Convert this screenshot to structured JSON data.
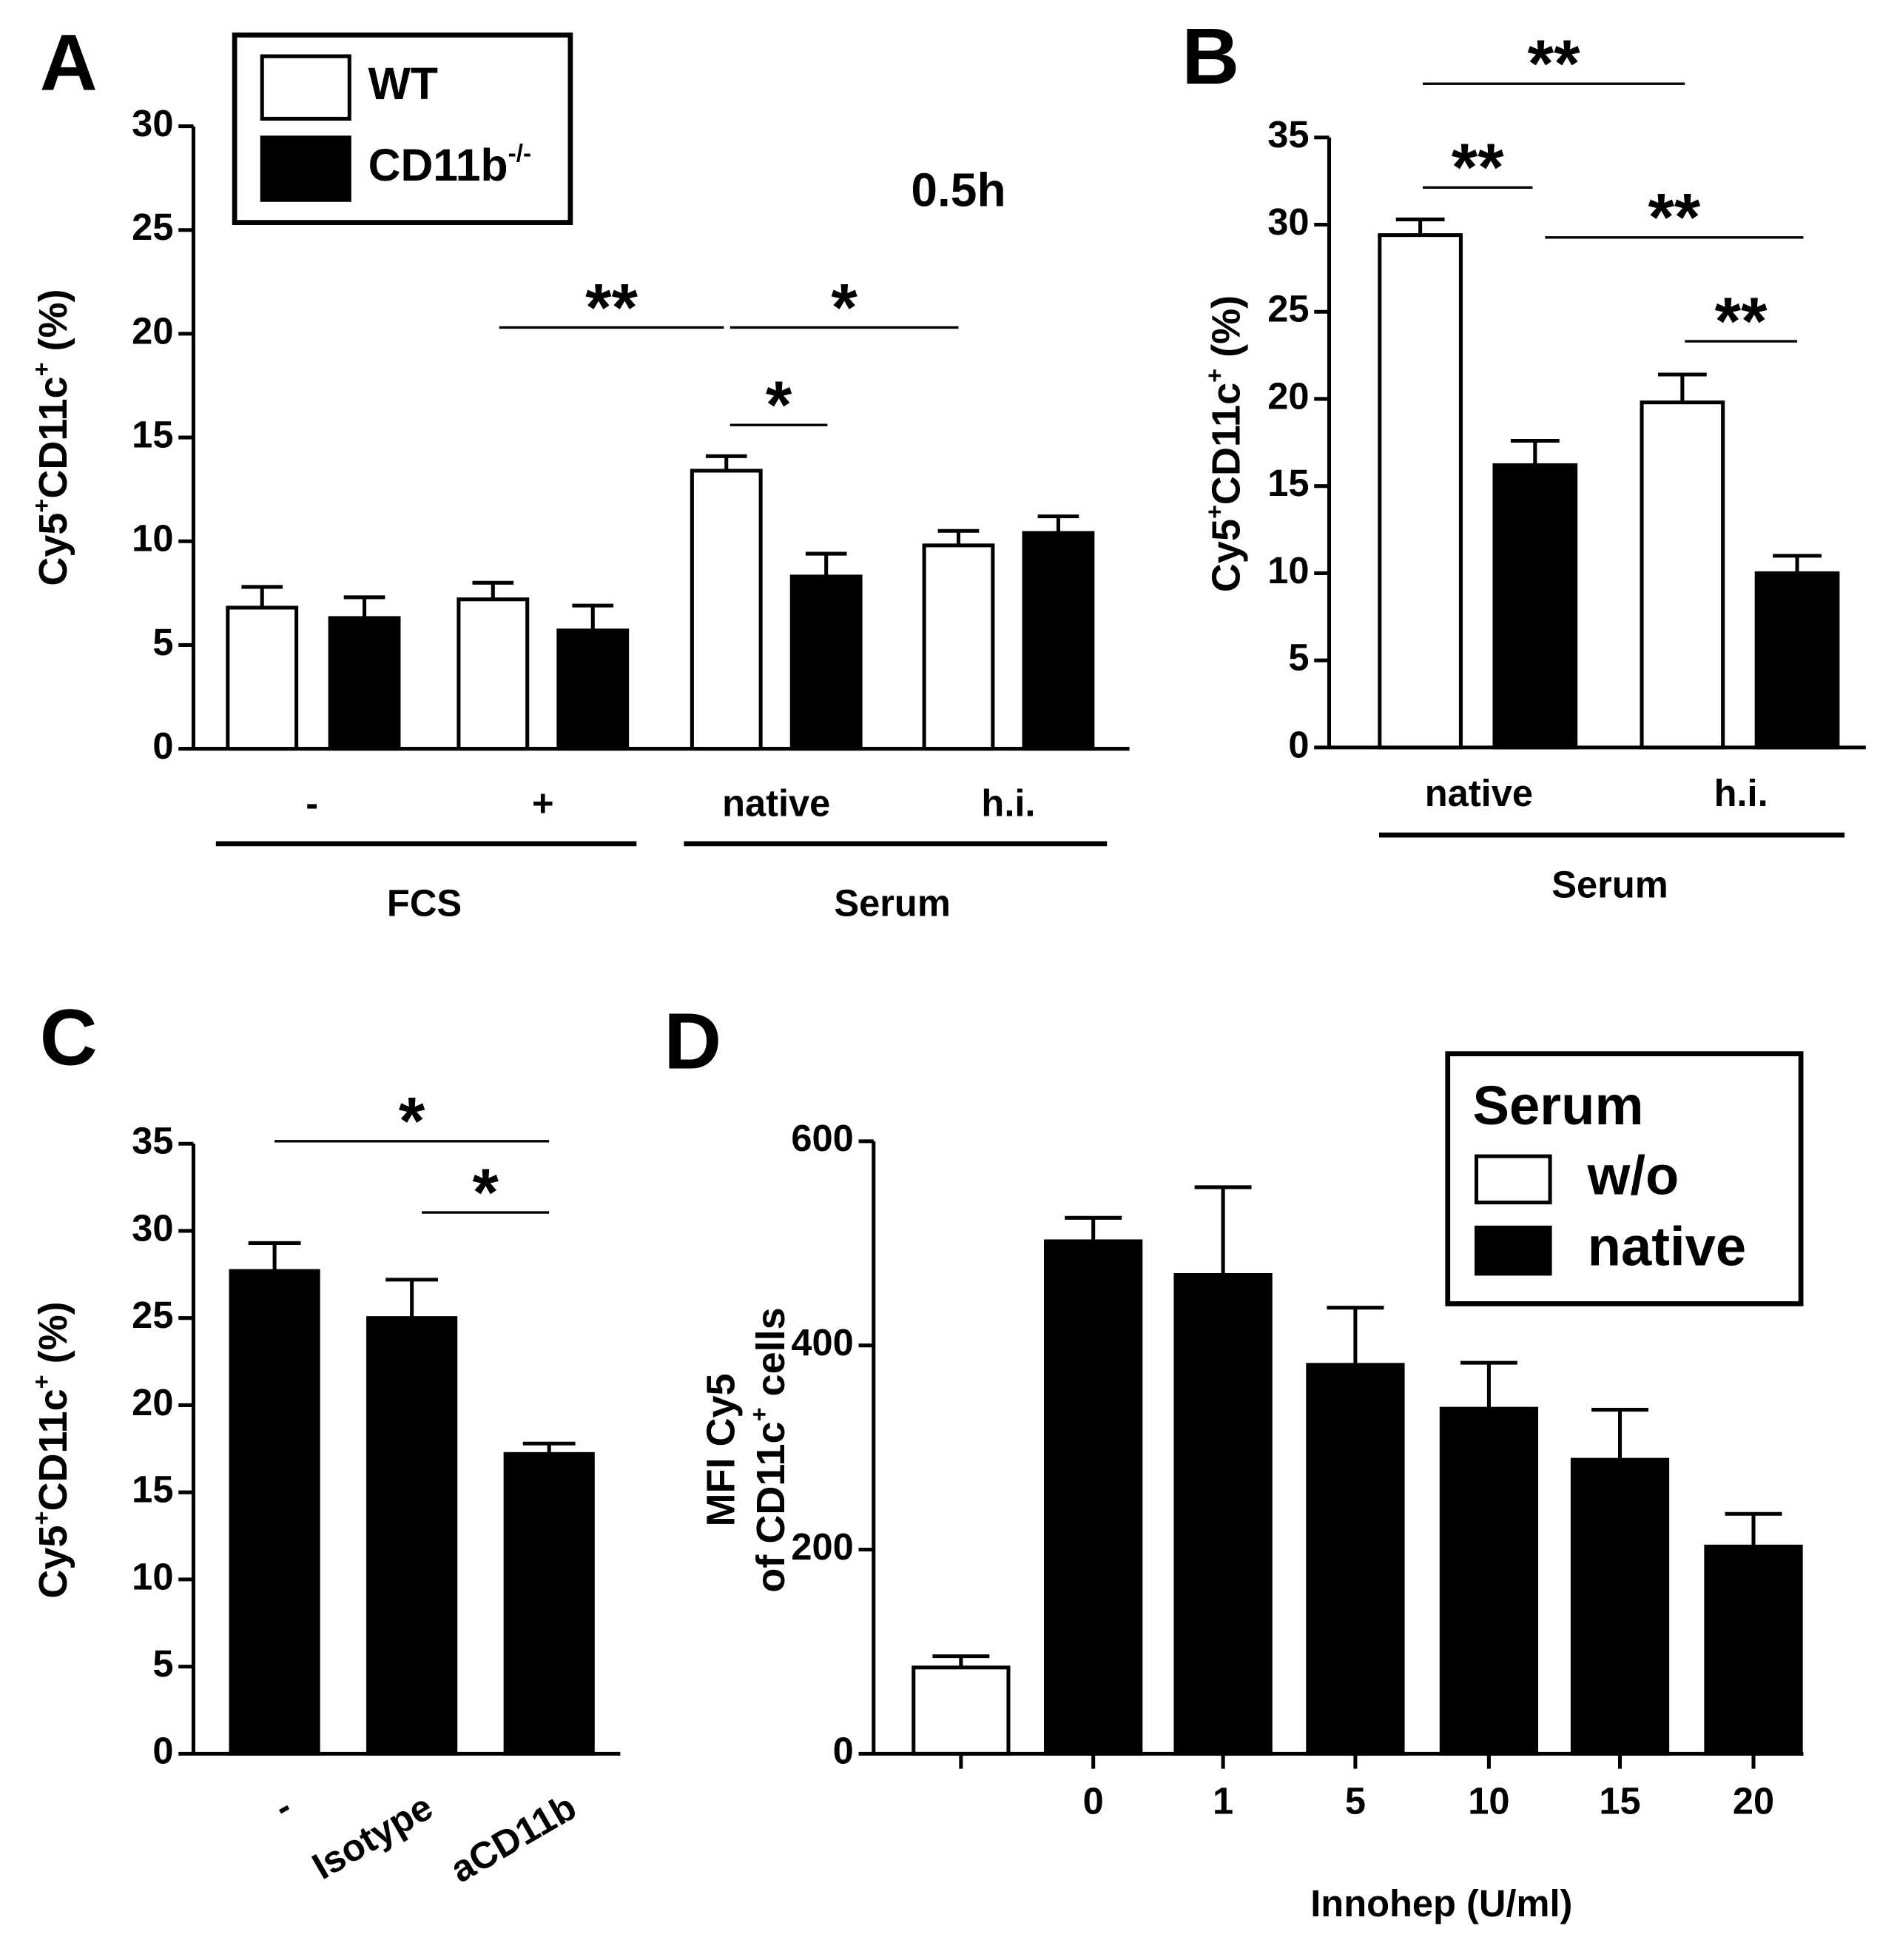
{
  "chart_data": [
    {
      "type": "bar",
      "panel": "A",
      "ylabel": [
        {
          "text": "Cy5",
          "sup": "+"
        },
        {
          "text": "CD11c",
          "sup": "+"
        },
        {
          "text": " (%)"
        }
      ],
      "categories": [
        "-",
        "+",
        "native",
        "h.i."
      ],
      "groups": [
        {
          "label": "FCS"
        },
        {
          "label": "Serum"
        }
      ],
      "annotation": "0.5h",
      "series": [
        {
          "name": "WT",
          "color": "#ffffff",
          "values": [
            6.8,
            7.2,
            13.4,
            9.8
          ],
          "errors": [
            1.0,
            0.8,
            0.7,
            0.7
          ]
        },
        {
          "name": "CD11b",
          "name_sup": "-/-",
          "color": "#000000",
          "values": [
            6.3,
            5.7,
            8.3,
            10.4
          ],
          "errors": [
            1.0,
            1.2,
            1.1,
            0.8
          ]
        }
      ],
      "significance": [
        {
          "label": "**"
        },
        {
          "label": "*"
        },
        {
          "label": "*"
        }
      ],
      "ylim": [
        0,
        30
      ],
      "yticks": [
        0,
        5,
        10,
        15,
        20,
        25,
        30
      ]
    },
    {
      "type": "bar",
      "panel": "B",
      "ylabel": [
        {
          "text": "Cy5",
          "sup": "+"
        },
        {
          "text": "CD11c",
          "sup": "+"
        },
        {
          "text": " (%)"
        }
      ],
      "categories": [
        "native",
        "h.i."
      ],
      "groups": [
        {
          "label": "Serum"
        }
      ],
      "series": [
        {
          "name": "WT",
          "color": "#ffffff",
          "values": [
            29.4,
            19.8
          ],
          "errors": [
            0.9,
            1.6
          ]
        },
        {
          "name": "CD11b",
          "color": "#000000",
          "values": [
            16.2,
            10.0
          ],
          "errors": [
            1.4,
            1.0
          ]
        }
      ],
      "significance": [
        {
          "label": "**"
        },
        {
          "label": "**"
        },
        {
          "label": "**"
        },
        {
          "label": "**"
        }
      ],
      "ylim": [
        0,
        35
      ],
      "yticks": [
        0,
        5,
        10,
        15,
        20,
        25,
        30,
        35
      ]
    },
    {
      "type": "bar",
      "panel": "C",
      "ylabel": [
        {
          "text": "Cy5",
          "sup": "+"
        },
        {
          "text": "CD11c",
          "sup": "+"
        },
        {
          "text": " (%)"
        }
      ],
      "categories": [
        "-",
        "Isotype",
        "aCD11b"
      ],
      "series": [
        {
          "color": "#000000",
          "values": [
            27.7,
            25.0,
            17.2
          ],
          "errors": [
            1.6,
            2.2,
            0.6
          ]
        }
      ],
      "significance": [
        {
          "label": "*"
        },
        {
          "label": "*"
        }
      ],
      "ylim": [
        0,
        35
      ],
      "yticks": [
        0,
        5,
        10,
        15,
        20,
        25,
        30,
        35
      ]
    },
    {
      "type": "bar",
      "panel": "D",
      "ylabel_lines": [
        [
          {
            "text": "MFI Cy5"
          }
        ],
        [
          {
            "text": "of CD11c",
            "sup": "+"
          },
          {
            "text": " cells"
          }
        ]
      ],
      "xlabel": "Innohep (U/ml)",
      "categories": [
        null,
        "0",
        "1",
        "5",
        "10",
        "15",
        "20"
      ],
      "legend_title": "Serum",
      "series": [
        {
          "name": "w/o",
          "color": "#ffffff",
          "values": [
            84.5,
            null,
            null,
            null,
            null,
            null,
            null
          ],
          "errors": [
            11,
            null,
            null,
            null,
            null,
            null,
            null
          ]
        },
        {
          "name": "native",
          "color": "#000000",
          "values": [
            null,
            502,
            469,
            381,
            338,
            288,
            203
          ],
          "errors": [
            null,
            23,
            86,
            56,
            45,
            49,
            32
          ]
        }
      ],
      "ylim": [
        0,
        600
      ],
      "yticks": [
        0,
        200,
        400,
        600
      ]
    }
  ]
}
